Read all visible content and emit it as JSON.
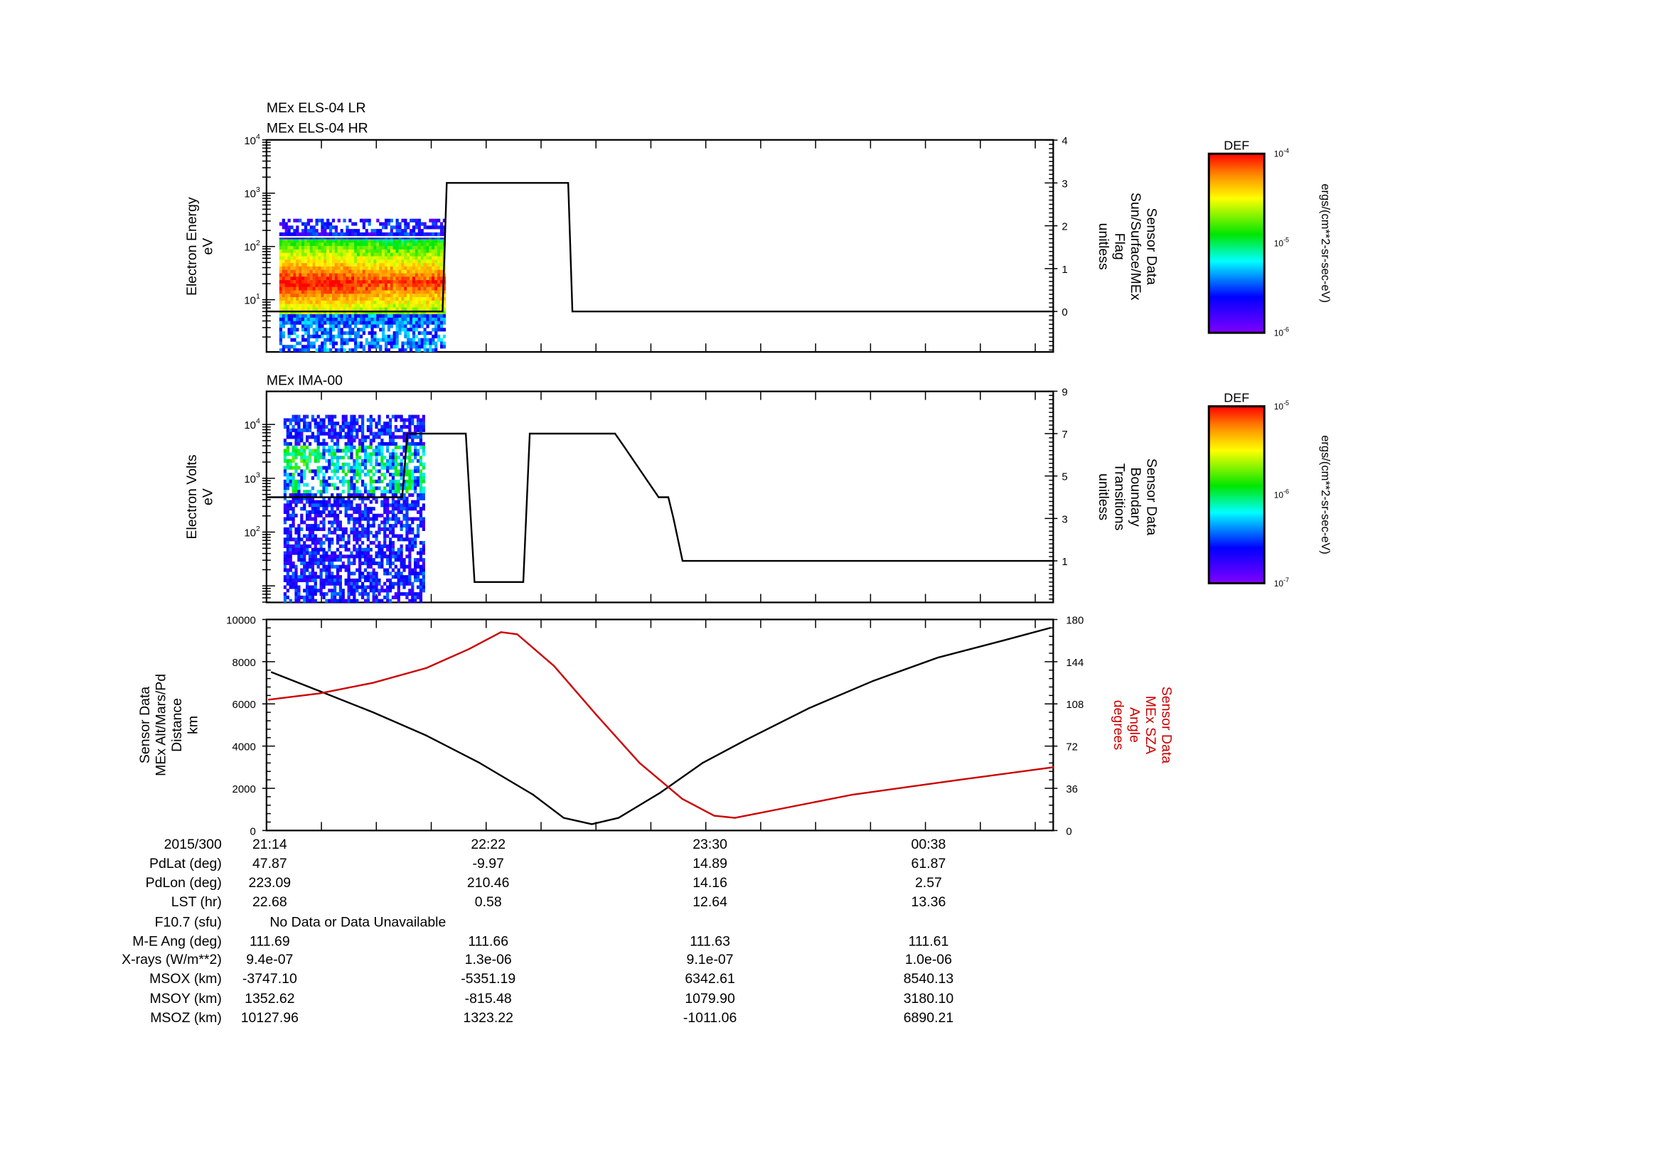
{
  "chart_data": [
    {
      "type": "heatmap",
      "titles": [
        "MEx ELS-04 LR",
        "MEx ELS-04 HR"
      ],
      "ylabel": [
        "Electron Energy",
        "eV"
      ],
      "yscale": "log",
      "ylim": [
        1,
        10000
      ],
      "yticks": [
        {
          "base": "10",
          "exp": "1"
        },
        {
          "base": "10",
          "exp": "2"
        },
        {
          "base": "10",
          "exp": "3"
        },
        {
          "base": "10",
          "exp": "4"
        }
      ],
      "overlay": {
        "name": "Sun/Surface/MEx Flag",
        "y2label": [
          "Sensor Data",
          "Sun/Surface/MEx",
          "Flag",
          "unitless"
        ],
        "y2lim": [
          -0.95,
          4
        ],
        "y2ticks": [
          "0",
          "1",
          "2",
          "3",
          "4"
        ],
        "x_minutes": [
          0,
          54.5,
          55.8,
          93.4,
          94.7,
          243.9
        ],
        "y": [
          0,
          0,
          3,
          3,
          0,
          0
        ]
      },
      "colorbar": {
        "label": "DEF",
        "units": "ergs/(cm**2-sr-sec-eV)",
        "ticks": [
          {
            "base": "10",
            "exp": "-4"
          },
          {
            "base": "10",
            "exp": "-5"
          },
          {
            "base": "10",
            "exp": "-6"
          }
        ],
        "range": [
          1e-06,
          0.0001
        ]
      },
      "data_extent_minutes": [
        4,
        55
      ]
    },
    {
      "type": "heatmap",
      "titles": [
        "MEx IMA-00"
      ],
      "ylabel": [
        "Electron Volts",
        "eV"
      ],
      "yscale": "log",
      "yticks": [
        {
          "base": "10",
          "exp": "2"
        },
        {
          "base": "10",
          "exp": "3"
        },
        {
          "base": "10",
          "exp": "4"
        }
      ],
      "overlay": {
        "name": "Boundary Transitions",
        "y2label": [
          "Sensor Data",
          "Boundary",
          "Transitions",
          "unitless"
        ],
        "y2lim": [
          -0.95,
          9
        ],
        "y2ticks": [
          "1",
          "3",
          "5",
          "7",
          "9"
        ],
        "x_minutes": [
          0,
          42,
          43.6,
          61.7,
          64.4,
          79.5,
          81.5,
          107.9,
          110.2,
          121.4,
          124.4,
          126.0,
          128.8,
          243.9
        ],
        "y": [
          4,
          4,
          7,
          7,
          0,
          0,
          7,
          7,
          6.5,
          4,
          4,
          3,
          1,
          1
        ]
      },
      "colorbar": {
        "label": "DEF",
        "units": "ergs/(cm**2-sr-sec-eV)",
        "ticks": [
          {
            "base": "10",
            "exp": "-5"
          },
          {
            "base": "10",
            "exp": "-6"
          },
          {
            "base": "10",
            "exp": "-7"
          }
        ],
        "range": [
          1e-07,
          1e-05
        ]
      },
      "data_extent_minutes": [
        5.3,
        48.8
      ]
    },
    {
      "type": "line",
      "ylabel": [
        "Sensor Data",
        "MEx Alt/Mars/Pd",
        "Distance",
        "km"
      ],
      "y2label": [
        "Sensor Data",
        "MEx SZA",
        "Angle",
        "degrees"
      ],
      "ylim": [
        0,
        10000
      ],
      "y2lim": [
        0,
        180
      ],
      "yticks": [
        "0",
        "2000",
        "4000",
        "6000",
        "8000",
        "10000"
      ],
      "y2ticks": [
        "0",
        "36",
        "72",
        "108",
        "144",
        "180"
      ],
      "series": [
        {
          "name": "MEx Alt/Mars/Pd Distance (km)",
          "color": "#000000",
          "axis": "left",
          "x_minutes": [
            1.6,
            16.5,
            33,
            49.5,
            66,
            82.5,
            92,
            100.7,
            109,
            122,
            135,
            148.5,
            168,
            188,
            208,
            228,
            242.6
          ],
          "y": [
            7500,
            6600,
            5600,
            4500,
            3200,
            1700,
            600,
            300,
            600,
            1800,
            3200,
            4300,
            5800,
            7100,
            8200,
            9000,
            9600
          ]
        },
        {
          "name": "MEx SZA Angle (degrees)",
          "color": "#cc0000",
          "axis": "right",
          "x_minutes": [
            0.7,
            16.5,
            33,
            49.5,
            62.7,
            72.6,
            77.6,
            89,
            102,
            115.5,
            128.7,
            138.6,
            145,
            155,
            181.5,
            214.5,
            243.6
          ],
          "y": [
            111.6,
            117,
            126,
            138.6,
            154.8,
            169.2,
            167.4,
            140.4,
            99,
            57.6,
            27,
            12.6,
            10.8,
            16.2,
            30.6,
            43.2,
            54
          ]
        }
      ]
    }
  ],
  "time_axis": {
    "start": "21:14",
    "minor_tick_minutes": 17
  },
  "ephemeris": {
    "header_label": "2015/300",
    "times": [
      "21:14",
      "22:22",
      "23:30",
      "00:38"
    ],
    "rows": [
      {
        "label": "PdLat (deg)",
        "values": [
          "47.87",
          "-9.97",
          "14.89",
          "61.87"
        ]
      },
      {
        "label": "PdLon (deg)",
        "values": [
          "223.09",
          "210.46",
          "14.16",
          "2.57"
        ]
      },
      {
        "label": "LST (hr)",
        "values": [
          "22.68",
          "0.58",
          "12.64",
          "13.36"
        ]
      },
      {
        "label": "F10.7 (sfu)",
        "note": "No Data or Data Unavailable",
        "values": []
      },
      {
        "label": "M-E Ang (deg)",
        "values": [
          "111.69",
          "111.66",
          "111.63",
          "111.61"
        ]
      },
      {
        "label": "X-rays (W/m**2)",
        "values": [
          "9.4e-07",
          "1.3e-06",
          "9.1e-07",
          "1.0e-06"
        ]
      },
      {
        "label": "MSOX (km)",
        "values": [
          "-3747.10",
          "-5351.19",
          "6342.61",
          "8540.13"
        ]
      },
      {
        "label": "MSOY (km)",
        "values": [
          "1352.62",
          "-815.48",
          "1079.90",
          "3180.10"
        ]
      },
      {
        "label": "MSOZ (km)",
        "values": [
          "10127.96",
          "1323.22",
          "-1011.06",
          "6890.21"
        ]
      }
    ]
  }
}
